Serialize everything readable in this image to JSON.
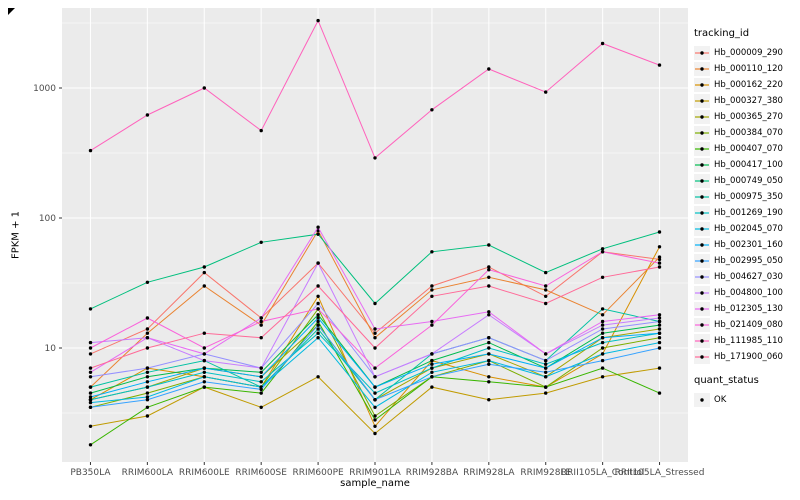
{
  "chart_data": {
    "type": "line",
    "title": "",
    "xlabel": "sample_name",
    "ylabel": "FPKM + 1",
    "y_scale": "log10",
    "y_ticks": [
      10,
      100,
      1000
    ],
    "y_minor_ticks": [
      3.162,
      31.62,
      316.2,
      3162
    ],
    "ylim": [
      1.3,
      4200
    ],
    "grid": true,
    "panel_bg": "#EBEBEB",
    "grid_color": "#FFFFFF",
    "tick_label_color": "#4D4D4D",
    "point_color": "#000000",
    "legend_position": "right",
    "legend_title": "tracking_id",
    "legend2_title": "quant_status",
    "legend2_items": [
      "OK"
    ],
    "categories": [
      "PB350LA",
      "RRIM600LA",
      "RRIM600LE",
      "RRIM600SE",
      "RRIM600PE",
      "RRIM901LA",
      "RRIM928BA",
      "RRIM928LA",
      "RRIM928LE",
      "RRII105LA_Control",
      "RRII105LA_Stressed"
    ],
    "series": [
      {
        "name": "Hb_000009_290",
        "color": "#F8766D",
        "values": [
          9,
          14,
          38,
          17,
          45,
          13,
          30,
          42,
          25,
          55,
          48
        ]
      },
      {
        "name": "Hb_000110_120",
        "color": "#EA8331",
        "values": [
          5,
          13,
          30,
          15,
          80,
          12,
          28,
          35,
          28,
          18,
          50
        ]
      },
      {
        "name": "Hb_000162_220",
        "color": "#D89000",
        "values": [
          4,
          7,
          6,
          5,
          25,
          2.5,
          8,
          6,
          5,
          9,
          60
        ]
      },
      {
        "name": "Hb_000327_380",
        "color": "#C09B00",
        "values": [
          2.5,
          3,
          5,
          3.5,
          6,
          2.2,
          5,
          4,
          4.5,
          6,
          7
        ]
      },
      {
        "name": "Hb_000365_270",
        "color": "#A3A500",
        "values": [
          4,
          5,
          7,
          6,
          15,
          4,
          7,
          9,
          6,
          12,
          14
        ]
      },
      {
        "name": "Hb_000384_070",
        "color": "#7CAE00",
        "values": [
          3.5,
          4.5,
          6,
          5,
          20,
          3,
          6,
          8,
          5,
          10,
          12
        ]
      },
      {
        "name": "Hb_000407_070",
        "color": "#39B600",
        "values": [
          1.8,
          3.5,
          5,
          4.5,
          16,
          2.8,
          6,
          5.5,
          5,
          7,
          4.5
        ]
      },
      {
        "name": "Hb_000417_100",
        "color": "#00BB4E",
        "values": [
          4.5,
          6,
          7,
          6.5,
          18,
          5,
          8,
          11,
          7,
          13,
          15
        ]
      },
      {
        "name": "Hb_000749_050",
        "color": "#00BF7D",
        "values": [
          20,
          32,
          42,
          65,
          75,
          22,
          55,
          62,
          38,
          58,
          78
        ]
      },
      {
        "name": "Hb_000975_350",
        "color": "#00C1A3",
        "values": [
          5,
          6.5,
          8,
          5,
          14,
          4,
          9,
          12,
          8,
          20,
          16
        ]
      },
      {
        "name": "Hb_001269_190",
        "color": "#00BFC4",
        "values": [
          4,
          5,
          6.5,
          5.5,
          13,
          4.5,
          7,
          10,
          7.5,
          11,
          13
        ]
      },
      {
        "name": "Hb_002045_070",
        "color": "#00BAE0",
        "values": [
          3.8,
          4.2,
          6,
          5,
          12,
          3.5,
          6.5,
          8,
          6,
          9,
          11
        ]
      },
      {
        "name": "Hb_002301_160",
        "color": "#00B0F6",
        "values": [
          4.2,
          5.5,
          7,
          6,
          17,
          5,
          7.5,
          9,
          7,
          12,
          13
        ]
      },
      {
        "name": "Hb_002995_050",
        "color": "#35A2FF",
        "values": [
          3.5,
          4,
          5.5,
          4.8,
          15,
          4,
          6,
          7.5,
          6.5,
          8,
          10
        ]
      },
      {
        "name": "Hb_004627_030",
        "color": "#9590FF",
        "values": [
          6,
          7,
          9,
          7,
          22,
          6,
          9,
          12,
          8,
          14,
          16
        ]
      },
      {
        "name": "Hb_004800_100",
        "color": "#C77CFF",
        "values": [
          11,
          12,
          8,
          7,
          45,
          6,
          9,
          18,
          9,
          15,
          17
        ]
      },
      {
        "name": "Hb_012305_130",
        "color": "#E76BF3",
        "values": [
          6.5,
          12,
          9,
          17,
          85,
          14,
          16,
          19,
          9,
          16,
          18
        ]
      },
      {
        "name": "Hb_021409_080",
        "color": "#FA62DB",
        "values": [
          10,
          17,
          10,
          16,
          20,
          7,
          15,
          40,
          30,
          55,
          45
        ]
      },
      {
        "name": "Hb_111985_110",
        "color": "#FF62BC",
        "values": [
          330,
          620,
          1000,
          470,
          3300,
          290,
          680,
          1400,
          930,
          2200,
          1500
        ]
      },
      {
        "name": "Hb_171900_060",
        "color": "#FF6A98",
        "values": [
          7,
          10,
          13,
          12,
          30,
          10,
          25,
          30,
          22,
          35,
          42
        ]
      }
    ]
  }
}
